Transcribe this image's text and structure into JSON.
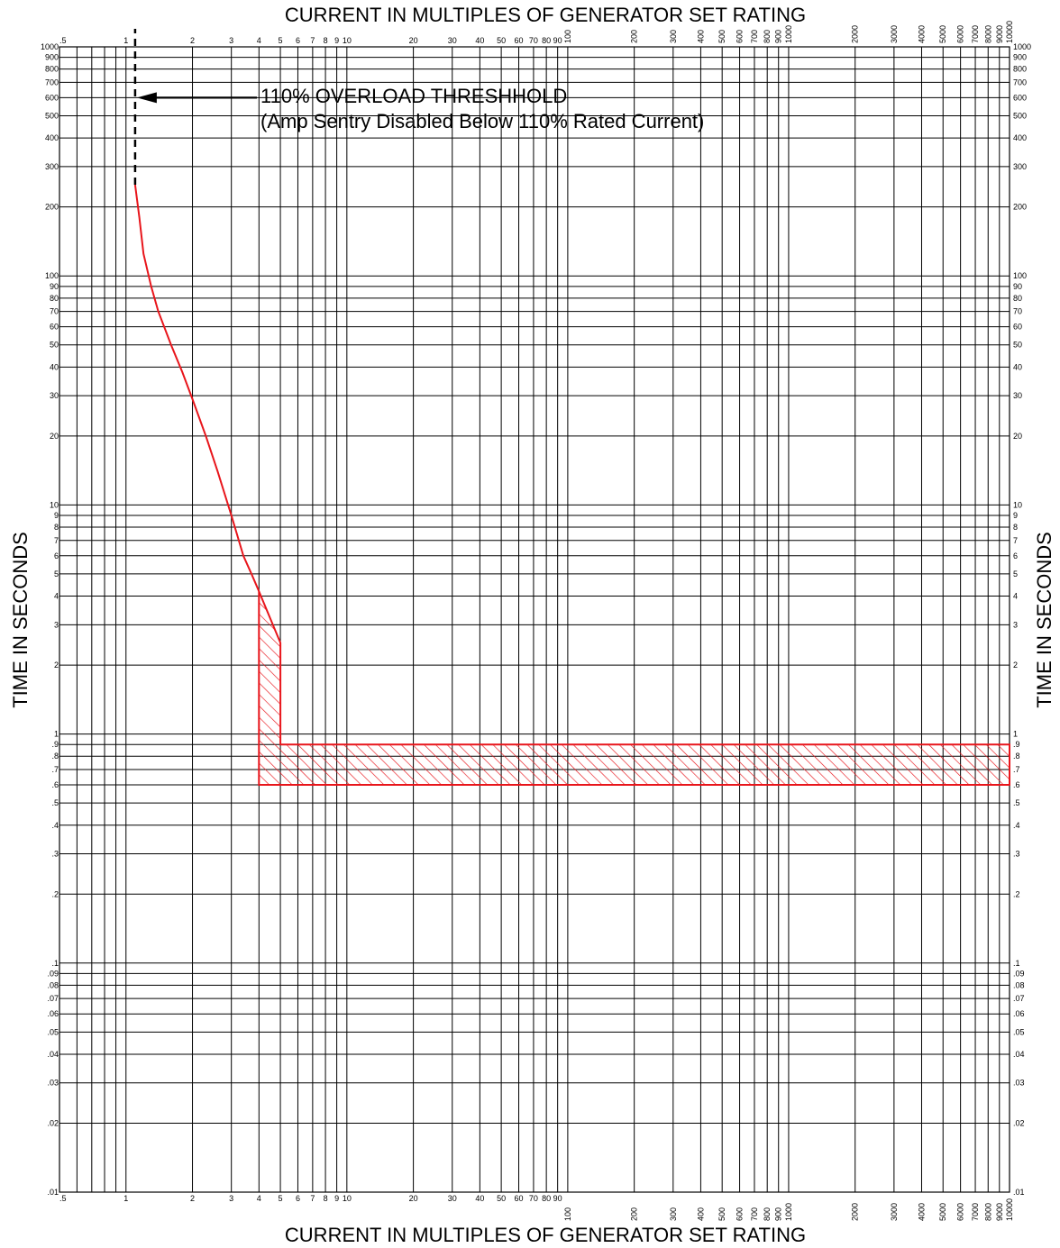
{
  "chart_data": {
    "type": "line",
    "title_top": "CURRENT IN MULTIPLES OF GENERATOR SET RATING",
    "title_bottom": "CURRENT IN MULTIPLES OF GENERATOR SET RATING",
    "ylabel_left": "TIME IN SECONDS",
    "ylabel_right": "TIME IN SECONDS",
    "x_scale": "log",
    "y_scale": "log",
    "xlim": [
      0.5,
      10000
    ],
    "ylim": [
      0.01,
      1000
    ],
    "grid": true,
    "x_tick_labels": [
      {
        "v": 0.5,
        "t": ".5"
      },
      {
        "v": 1,
        "t": "1"
      },
      {
        "v": 2,
        "t": "2"
      },
      {
        "v": 3,
        "t": "3"
      },
      {
        "v": 4,
        "t": "4"
      },
      {
        "v": 5,
        "t": "5"
      },
      {
        "v": 6,
        "t": "6"
      },
      {
        "v": 7,
        "t": "7"
      },
      {
        "v": 8,
        "t": "8"
      },
      {
        "v": 9,
        "t": "9"
      },
      {
        "v": 10,
        "t": "10"
      },
      {
        "v": 20,
        "t": "20"
      },
      {
        "v": 30,
        "t": "30"
      },
      {
        "v": 40,
        "t": "40"
      },
      {
        "v": 50,
        "t": "50"
      },
      {
        "v": 60,
        "t": "60"
      },
      {
        "v": 70,
        "t": "70"
      },
      {
        "v": 80,
        "t": "80"
      },
      {
        "v": 90,
        "t": "90"
      },
      {
        "v": 100,
        "t": "100"
      },
      {
        "v": 200,
        "t": "200"
      },
      {
        "v": 300,
        "t": "300"
      },
      {
        "v": 400,
        "t": "400"
      },
      {
        "v": 500,
        "t": "500"
      },
      {
        "v": 600,
        "t": "600"
      },
      {
        "v": 700,
        "t": "700"
      },
      {
        "v": 800,
        "t": "800"
      },
      {
        "v": 900,
        "t": "900"
      },
      {
        "v": 1000,
        "t": "1000"
      },
      {
        "v": 2000,
        "t": "2000"
      },
      {
        "v": 3000,
        "t": "3000"
      },
      {
        "v": 4000,
        "t": "4000"
      },
      {
        "v": 5000,
        "t": "5000"
      },
      {
        "v": 6000,
        "t": "6000"
      },
      {
        "v": 7000,
        "t": "7000"
      },
      {
        "v": 8000,
        "t": "8000"
      },
      {
        "v": 9000,
        "t": "9000"
      },
      {
        "v": 10000,
        "t": "10000"
      }
    ],
    "y_tick_labels": [
      {
        "v": 1000,
        "t": "1000"
      },
      {
        "v": 900,
        "t": "900"
      },
      {
        "v": 800,
        "t": "800"
      },
      {
        "v": 700,
        "t": "700"
      },
      {
        "v": 600,
        "t": "600"
      },
      {
        "v": 500,
        "t": "500"
      },
      {
        "v": 400,
        "t": "400"
      },
      {
        "v": 300,
        "t": "300"
      },
      {
        "v": 200,
        "t": "200"
      },
      {
        "v": 100,
        "t": "100"
      },
      {
        "v": 90,
        "t": "90"
      },
      {
        "v": 80,
        "t": "80"
      },
      {
        "v": 70,
        "t": "70"
      },
      {
        "v": 60,
        "t": "60"
      },
      {
        "v": 50,
        "t": "50"
      },
      {
        "v": 40,
        "t": "40"
      },
      {
        "v": 30,
        "t": "30"
      },
      {
        "v": 20,
        "t": "20"
      },
      {
        "v": 10,
        "t": "10"
      },
      {
        "v": 9,
        "t": "9"
      },
      {
        "v": 8,
        "t": "8"
      },
      {
        "v": 7,
        "t": "7"
      },
      {
        "v": 6,
        "t": "6"
      },
      {
        "v": 5,
        "t": "5"
      },
      {
        "v": 4,
        "t": "4"
      },
      {
        "v": 3,
        "t": "3"
      },
      {
        "v": 2,
        "t": "2"
      },
      {
        "v": 1,
        "t": "1"
      },
      {
        "v": 0.9,
        "t": ".9"
      },
      {
        "v": 0.8,
        "t": ".8"
      },
      {
        "v": 0.7,
        "t": ".7"
      },
      {
        "v": 0.6,
        "t": ".6"
      },
      {
        "v": 0.5,
        "t": ".5"
      },
      {
        "v": 0.4,
        "t": ".4"
      },
      {
        "v": 0.3,
        "t": ".3"
      },
      {
        "v": 0.2,
        "t": ".2"
      },
      {
        "v": 0.1,
        "t": ".1"
      },
      {
        "v": 0.09,
        "t": ".09"
      },
      {
        "v": 0.08,
        "t": ".08"
      },
      {
        "v": 0.07,
        "t": ".07"
      },
      {
        "v": 0.06,
        "t": ".06"
      },
      {
        "v": 0.05,
        "t": ".05"
      },
      {
        "v": 0.04,
        "t": ".04"
      },
      {
        "v": 0.03,
        "t": ".03"
      },
      {
        "v": 0.02,
        "t": ".02"
      },
      {
        "v": 0.01,
        "t": ".01"
      }
    ],
    "series": [
      {
        "type": "line",
        "color": "#e8151b",
        "points": [
          {
            "x": 1.1,
            "y": 250
          },
          {
            "x": 1.15,
            "y": 180
          },
          {
            "x": 1.2,
            "y": 125
          },
          {
            "x": 1.3,
            "y": 90
          },
          {
            "x": 1.4,
            "y": 70
          },
          {
            "x": 1.6,
            "y": 50
          },
          {
            "x": 1.8,
            "y": 38
          },
          {
            "x": 2.0,
            "y": 29
          },
          {
            "x": 2.3,
            "y": 20
          },
          {
            "x": 2.6,
            "y": 14
          },
          {
            "x": 3.0,
            "y": 9
          },
          {
            "x": 3.4,
            "y": 6
          },
          {
            "x": 3.7,
            "y": 5
          },
          {
            "x": 4.0,
            "y": 4.2
          }
        ]
      }
    ],
    "band": {
      "color": "#e8151b",
      "fill": "hatched",
      "polygon": [
        {
          "x": 4.0,
          "y": 4.2
        },
        {
          "x": 5.0,
          "y": 2.5
        },
        {
          "x": 5.0,
          "y": 0.9
        },
        {
          "x": 10000,
          "y": 0.9
        },
        {
          "x": 10000,
          "y": 0.6
        },
        {
          "x": 4.0,
          "y": 0.6
        }
      ]
    },
    "threshold": {
      "x": 1.1,
      "y_range": [
        250,
        1000
      ],
      "style": "dashed",
      "arrow_y": 600,
      "label_line1": "110% OVERLOAD THRESHHOLD",
      "label_line2": "(Amp Sentry Disabled Below 110% Rated Current)"
    }
  }
}
